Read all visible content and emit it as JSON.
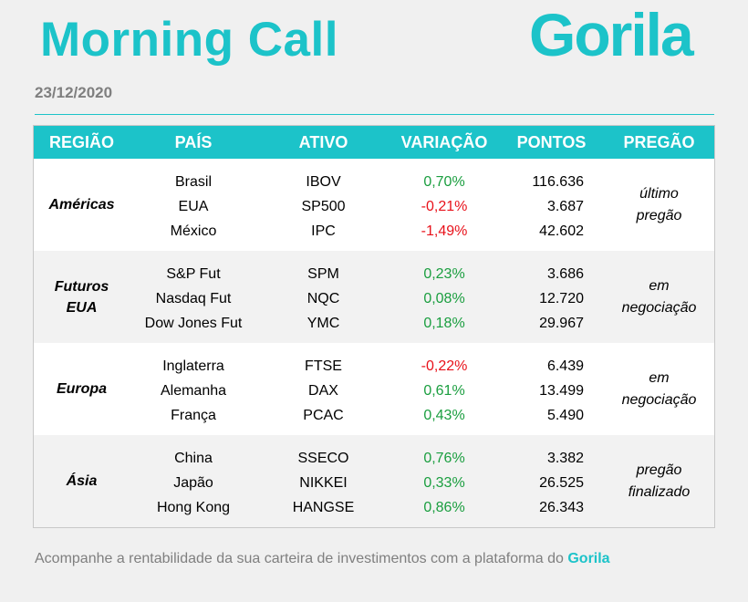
{
  "header": {
    "title": "Morning Call",
    "logo": "Gorila",
    "date": "23/12/2020"
  },
  "colors": {
    "accent": "#1cc3c9",
    "positive": "#1a9e3f",
    "negative": "#e8111a"
  },
  "table": {
    "columns": [
      "REGIÃO",
      "PAÍS",
      "ATIVO",
      "VARIAÇÃO",
      "PONTOS",
      "PREGÃO"
    ],
    "groups": [
      {
        "region": "Américas",
        "status": [
          "último",
          "pregão"
        ],
        "rows": [
          {
            "pais": "Brasil",
            "ativo": "IBOV",
            "variacao": "0,70%",
            "pontos": "116.636"
          },
          {
            "pais": "EUA",
            "ativo": "SP500",
            "variacao": "-0,21%",
            "pontos": "3.687"
          },
          {
            "pais": "México",
            "ativo": "IPC",
            "variacao": "-1,49%",
            "pontos": "42.602"
          }
        ]
      },
      {
        "region": [
          "Futuros",
          "EUA"
        ],
        "status": [
          "em",
          "negociação"
        ],
        "rows": [
          {
            "pais": "S&P Fut",
            "ativo": "SPM",
            "variacao": "0,23%",
            "pontos": "3.686"
          },
          {
            "pais": "Nasdaq Fut",
            "ativo": "NQC",
            "variacao": "0,08%",
            "pontos": "12.720"
          },
          {
            "pais": "Dow Jones Fut",
            "ativo": "YMC",
            "variacao": "0,18%",
            "pontos": "29.967"
          }
        ]
      },
      {
        "region": "Europa",
        "status": [
          "em",
          "negociação"
        ],
        "rows": [
          {
            "pais": "Inglaterra",
            "ativo": "FTSE",
            "variacao": "-0,22%",
            "pontos": "6.439"
          },
          {
            "pais": "Alemanha",
            "ativo": "DAX",
            "variacao": "0,61%",
            "pontos": "13.499"
          },
          {
            "pais": "França",
            "ativo": "PCAC",
            "variacao": "0,43%",
            "pontos": "5.490"
          }
        ]
      },
      {
        "region": "Ásia",
        "status": [
          "pregão",
          "finalizado"
        ],
        "rows": [
          {
            "pais": "China",
            "ativo": "SSECO",
            "variacao": "0,76%",
            "pontos": "3.382"
          },
          {
            "pais": "Japão",
            "ativo": "NIKKEI",
            "variacao": "0,33%",
            "pontos": "26.525"
          },
          {
            "pais": "Hong Kong",
            "ativo": "HANGSE",
            "variacao": "0,86%",
            "pontos": "26.343"
          }
        ]
      }
    ]
  },
  "footer": {
    "text": "Acompanhe a rentabilidade da sua carteira de investimentos com a plataforma do ",
    "brand": "Gorila"
  }
}
